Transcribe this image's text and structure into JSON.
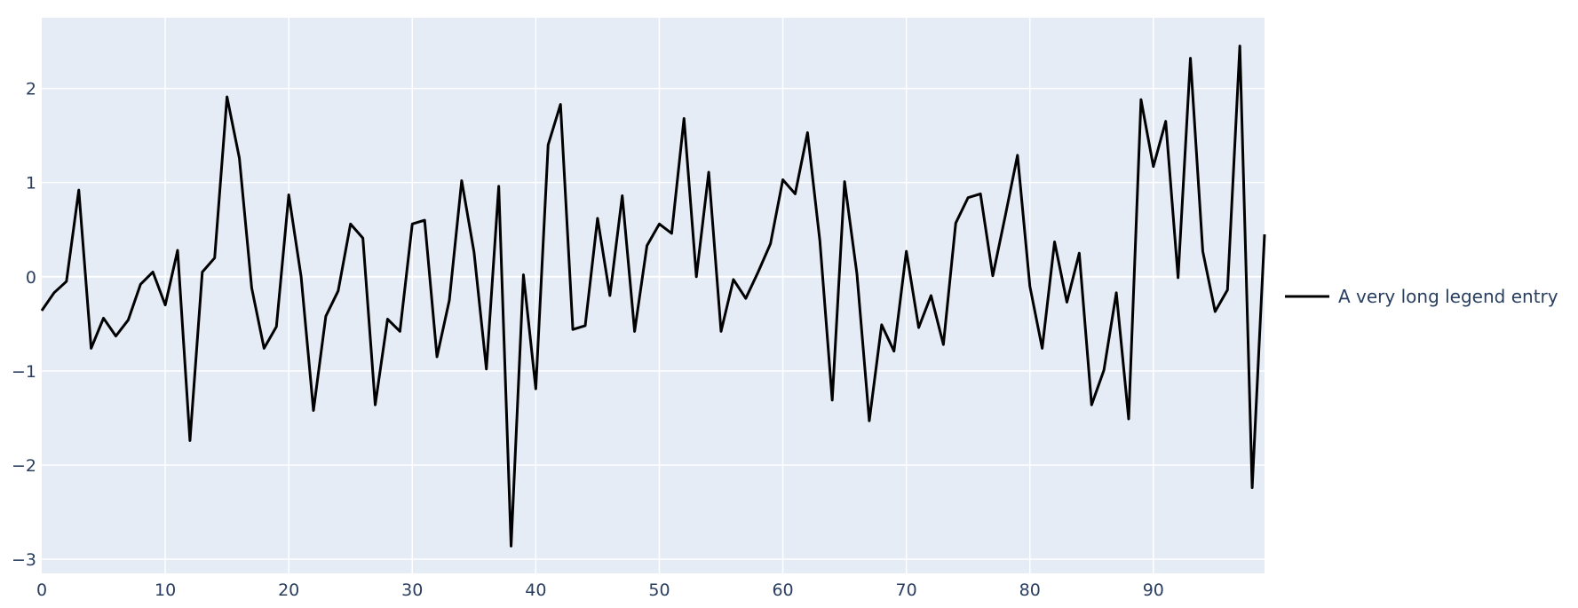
{
  "chart_data": {
    "type": "line",
    "title": "",
    "xlabel": "",
    "ylabel": "",
    "xlim": [
      0,
      99
    ],
    "ylim": [
      -3.15,
      2.75
    ],
    "x_ticks": [
      0,
      10,
      20,
      30,
      40,
      50,
      60,
      70,
      80,
      90
    ],
    "y_ticks": [
      -3,
      -2,
      -1,
      0,
      1,
      2
    ],
    "grid": true,
    "legend_position": "right",
    "plot_bgcolor": "#e5ecf6",
    "gridcolor": "#ffffff",
    "line_color": "#000000",
    "series": [
      {
        "name": "A very long legend entry",
        "x": [
          0,
          1,
          2,
          3,
          4,
          5,
          6,
          7,
          8,
          9,
          10,
          11,
          12,
          13,
          14,
          15,
          16,
          17,
          18,
          19,
          20,
          21,
          22,
          23,
          24,
          25,
          26,
          27,
          28,
          29,
          30,
          31,
          32,
          33,
          34,
          35,
          36,
          37,
          38,
          39,
          40,
          41,
          42,
          43,
          44,
          45,
          46,
          47,
          48,
          49,
          50,
          51,
          52,
          53,
          54,
          55,
          56,
          57,
          58,
          59,
          60,
          61,
          62,
          63,
          64,
          65,
          66,
          67,
          68,
          69,
          70,
          71,
          72,
          73,
          74,
          75,
          76,
          77,
          78,
          79,
          80,
          81,
          82,
          83,
          84,
          85,
          86,
          87,
          88,
          89,
          90,
          91,
          92,
          93,
          94,
          95,
          96,
          97,
          98,
          99
        ],
        "y": [
          -0.36,
          -0.17,
          -0.05,
          0.92,
          -0.76,
          -0.44,
          -0.63,
          -0.46,
          -0.08,
          0.05,
          -0.3,
          0.28,
          -1.74,
          0.05,
          0.2,
          1.91,
          1.26,
          -0.12,
          -0.76,
          -0.53,
          0.87,
          0.0,
          -1.42,
          -0.42,
          -0.15,
          0.56,
          0.41,
          -1.36,
          -0.45,
          -0.58,
          0.56,
          0.6,
          -0.85,
          -0.25,
          1.02,
          0.26,
          -0.98,
          0.96,
          -2.86,
          0.02,
          -1.19,
          1.4,
          1.83,
          -0.56,
          -0.52,
          0.62,
          -0.2,
          0.86,
          -0.58,
          0.33,
          0.56,
          0.46,
          1.68,
          0.0,
          1.11,
          -0.58,
          -0.03,
          -0.23,
          0.05,
          0.35,
          1.03,
          0.88,
          1.53,
          0.38,
          -1.31,
          1.01,
          0.03,
          -1.53,
          -0.51,
          -0.79,
          0.27,
          -0.54,
          -0.2,
          -0.72,
          0.57,
          0.84,
          0.88,
          0.01,
          0.64,
          1.29,
          -0.1,
          -0.76,
          0.37,
          -0.27,
          0.25,
          -1.36,
          -0.99,
          -0.17,
          -1.51,
          1.88,
          1.17,
          1.65,
          -0.01,
          2.32,
          0.27,
          -0.37,
          -0.14,
          2.45,
          -2.24,
          0.45
        ]
      }
    ]
  }
}
